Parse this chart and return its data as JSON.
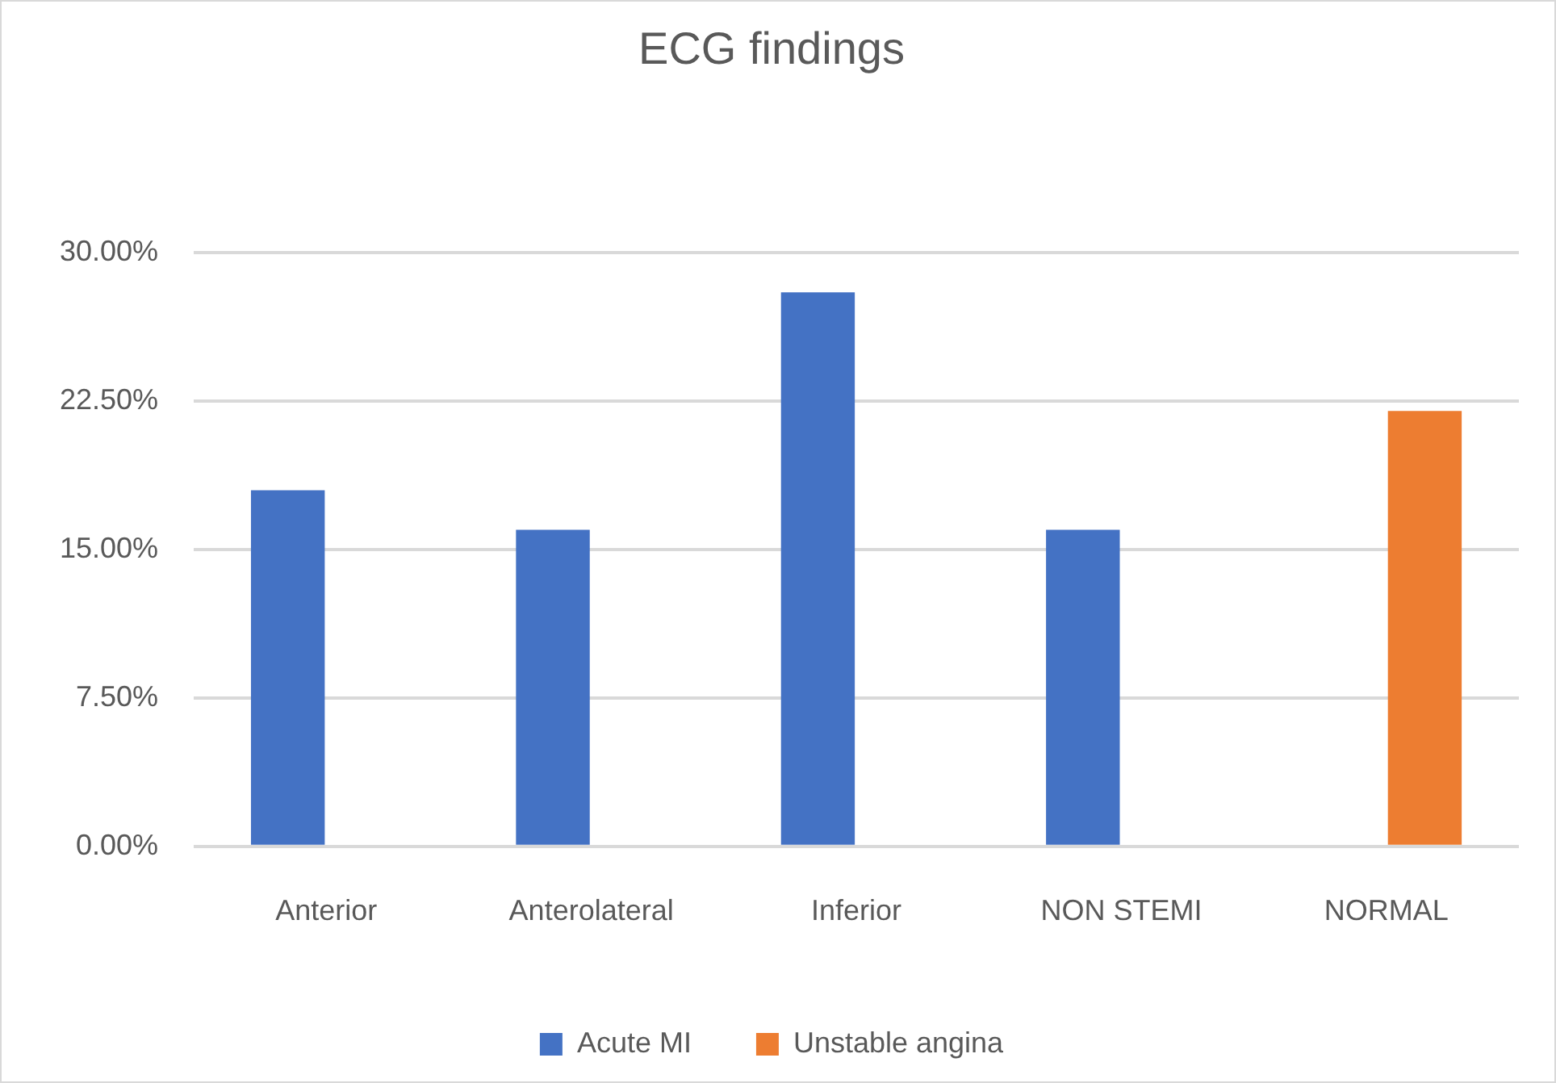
{
  "chart_data": {
    "type": "bar",
    "title": "ECG findings",
    "categories": [
      "Anterior",
      "Anterolateral",
      "Inferior",
      "NON STEMI",
      "NORMAL"
    ],
    "series": [
      {
        "name": "Acute MI",
        "color": "#4472c4",
        "values": [
          18,
          16,
          28,
          16,
          0
        ]
      },
      {
        "name": "Unstable angina",
        "color": "#ed7d31",
        "values": [
          0,
          0,
          0,
          0,
          22
        ]
      }
    ],
    "ylim": [
      0,
      30
    ],
    "yticks": [
      {
        "value": 0,
        "label": "0.00%"
      },
      {
        "value": 7.5,
        "label": "7.50%"
      },
      {
        "value": 15,
        "label": "15.00%"
      },
      {
        "value": 22.5,
        "label": "22.50%"
      },
      {
        "value": 30,
        "label": "30.00%"
      }
    ],
    "grid": "y",
    "legend": "bottom"
  }
}
